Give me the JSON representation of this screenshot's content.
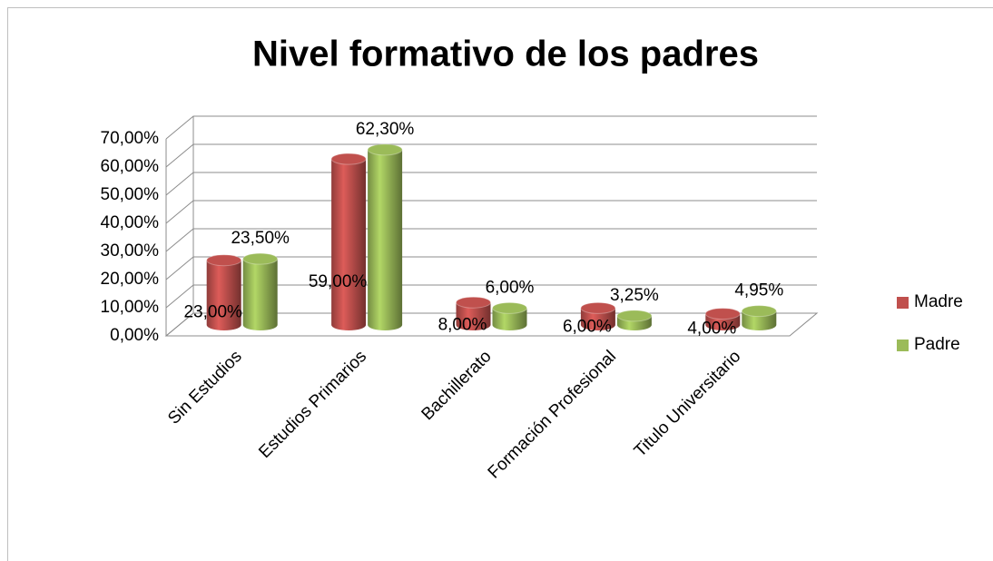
{
  "chart_data": {
    "type": "bar3d",
    "title": "Nivel formativo de los padres",
    "categories": [
      "Sin Estudios",
      "Estudios Primarios",
      "Bachillerato",
      "Formación Profesional",
      "Titulo Universitario"
    ],
    "series": [
      {
        "name": "Madre",
        "color": "#c0504d",
        "values": [
          23,
          59,
          8,
          6,
          4
        ],
        "value_labels": [
          "23,00%",
          "59,00%",
          "8,00%",
          "6,00%",
          "4,00%"
        ]
      },
      {
        "name": "Padre",
        "color": "#9bbb59",
        "values": [
          23.5,
          62.3,
          6,
          3.25,
          4.95
        ],
        "value_labels": [
          "23,50%",
          "62,30%",
          "6,00%",
          "3,25%",
          "4,95%"
        ]
      }
    ],
    "ylim": [
      0,
      70
    ],
    "yticks": [
      {
        "value": 0,
        "label": "0,00%"
      },
      {
        "value": 10,
        "label": "10,00%"
      },
      {
        "value": 20,
        "label": "20,00%"
      },
      {
        "value": 30,
        "label": "30,00%"
      },
      {
        "value": 40,
        "label": "40,00%"
      },
      {
        "value": 50,
        "label": "50,00%"
      },
      {
        "value": 60,
        "label": "60,00%"
      },
      {
        "value": 70,
        "label": "70,00%"
      }
    ],
    "grid": true,
    "legend": "right"
  }
}
